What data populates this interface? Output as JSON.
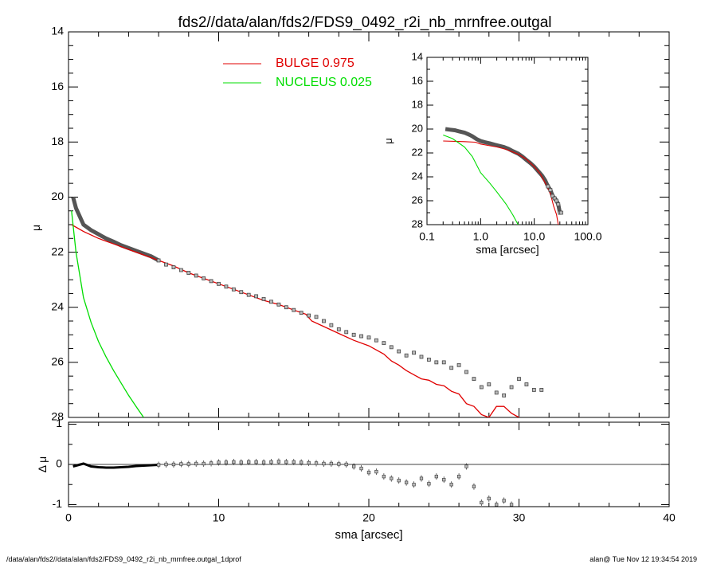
{
  "title": "fds2//data/alan/fds2/FDS9_0492_r2i_nb_mrnfree.outgal",
  "footer": {
    "left": "/data/alan/fds2//data/alan/fds2/FDS9_0492_r2i_nb_mrnfree.outgal_1dprof",
    "right": "alan@  Tue Nov 12 19:34:54 2019"
  },
  "colors": {
    "bulge": "#e00000",
    "nucleus": "#00dd00",
    "data": "#555555",
    "axis": "#000000"
  },
  "chart_data": [
    {
      "type": "line",
      "name": "main-profile",
      "xlabel": "",
      "ylabel": "μ",
      "xlim": [
        0,
        40
      ],
      "ylim": [
        28,
        14
      ],
      "y_ticks": [
        "14",
        "16",
        "18",
        "20",
        "22",
        "24",
        "26",
        "28"
      ],
      "legend": [
        {
          "label": "BULGE  0.975",
          "color": "#e00000"
        },
        {
          "label": "NUCLEUS  0.025",
          "color": "#00dd00"
        }
      ],
      "legend_position": "top-center",
      "series": [
        {
          "name": "BULGE  0.975",
          "x": [
            0.2,
            1,
            2,
            3,
            4,
            5,
            6,
            7,
            8,
            9,
            10,
            11,
            12,
            13,
            14,
            15,
            15.8,
            16.2,
            17,
            18,
            19,
            20,
            21,
            21.5,
            22,
            22.5,
            23,
            23.5,
            24,
            24.5,
            25,
            25.5,
            26,
            26.5,
            27,
            27.5,
            28,
            28.5,
            29,
            29.5,
            30
          ],
          "y": [
            21.0,
            21.25,
            21.5,
            21.7,
            21.9,
            22.1,
            22.3,
            22.5,
            22.75,
            22.95,
            23.15,
            23.35,
            23.55,
            23.75,
            23.9,
            24.1,
            24.25,
            24.5,
            24.7,
            24.95,
            25.2,
            25.4,
            25.7,
            25.95,
            26.1,
            26.3,
            26.45,
            26.6,
            26.65,
            26.8,
            26.85,
            27.05,
            27.15,
            27.5,
            27.6,
            27.9,
            28.0,
            27.6,
            27.6,
            27.85,
            28.0
          ]
        },
        {
          "name": "NUCLEUS  0.025",
          "x": [
            0.2,
            0.5,
            1,
            1.5,
            2,
            2.5,
            3,
            3.5,
            4,
            4.5,
            5
          ],
          "y": [
            20.5,
            22.0,
            23.65,
            24.55,
            25.25,
            25.8,
            26.3,
            26.75,
            27.2,
            27.6,
            28.0
          ]
        },
        {
          "name": "data",
          "x": [
            0.3,
            0.5,
            1,
            1.5,
            2,
            2.5,
            3,
            3.5,
            4,
            4.5,
            5,
            5.5,
            6,
            6.5,
            7,
            7.5,
            8,
            8.5,
            9,
            9.5,
            10,
            10.5,
            11,
            11.5,
            12,
            12.5,
            13,
            13.5,
            14,
            14.5,
            15,
            15.5,
            16,
            16.5,
            17,
            17.5,
            18,
            18.5,
            19,
            19.5,
            20,
            20.5,
            21,
            21.5,
            22,
            22.5,
            23,
            23.5,
            24,
            24.5,
            25,
            25.5,
            26,
            26.5,
            27,
            27.5,
            28,
            28.5,
            29,
            29.5,
            30,
            30.5,
            31,
            31.5
          ],
          "y": [
            20.0,
            20.4,
            21.0,
            21.2,
            21.35,
            21.5,
            21.62,
            21.75,
            21.85,
            21.95,
            22.05,
            22.15,
            22.3,
            22.45,
            22.55,
            22.65,
            22.75,
            22.85,
            22.95,
            23.05,
            23.15,
            23.25,
            23.35,
            23.45,
            23.55,
            23.6,
            23.7,
            23.8,
            23.9,
            24.0,
            24.1,
            24.2,
            24.3,
            24.35,
            24.5,
            24.65,
            24.8,
            24.9,
            25.0,
            25.05,
            25.1,
            25.2,
            25.3,
            25.45,
            25.6,
            25.75,
            25.65,
            25.8,
            25.9,
            26.0,
            26.0,
            26.2,
            26.1,
            26.35,
            26.6,
            26.9,
            26.8,
            27.1,
            27.2,
            26.9,
            26.6,
            26.8,
            27.0,
            27.0
          ]
        }
      ]
    },
    {
      "type": "scatter",
      "name": "residuals",
      "xlabel": "sma [arcsec]",
      "ylabel": "Δ μ",
      "xlim": [
        0,
        40
      ],
      "ylim": [
        -1.05,
        1.05
      ],
      "x_ticks": [
        "0",
        "10",
        "20",
        "30",
        "40"
      ],
      "y_ticks": [
        "1",
        "0",
        "-1"
      ],
      "series": [
        {
          "name": "residual",
          "x": [
            0.3,
            0.6,
            1,
            1.5,
            2,
            2.5,
            3,
            3.5,
            4,
            4.5,
            5,
            5.5,
            6,
            6.5,
            7,
            7.5,
            8,
            8.5,
            9,
            9.5,
            10,
            10.5,
            11,
            11.5,
            12,
            12.5,
            13,
            13.5,
            14,
            14.5,
            15,
            15.5,
            16,
            16.5,
            17,
            17.5,
            18,
            18.5,
            19,
            19.5,
            20,
            20.5,
            21,
            21.5,
            22,
            22.5,
            23,
            23.5,
            24,
            24.5,
            25,
            25.5,
            26,
            26.5,
            27,
            27.5,
            28,
            28.5,
            29,
            29.5
          ],
          "y": [
            -0.05,
            -0.02,
            0.02,
            -0.05,
            -0.07,
            -0.08,
            -0.08,
            -0.07,
            -0.06,
            -0.04,
            -0.03,
            -0.02,
            -0.01,
            0.0,
            0.0,
            0.01,
            0.01,
            0.02,
            0.02,
            0.03,
            0.05,
            0.05,
            0.06,
            0.05,
            0.06,
            0.06,
            0.05,
            0.06,
            0.07,
            0.06,
            0.06,
            0.05,
            0.04,
            0.03,
            0.02,
            0.02,
            0.01,
            0.0,
            -0.05,
            -0.1,
            -0.2,
            -0.18,
            -0.3,
            -0.35,
            -0.4,
            -0.45,
            -0.5,
            -0.35,
            -0.48,
            -0.3,
            -0.38,
            -0.5,
            -0.3,
            -0.05,
            -0.55,
            -0.95,
            -0.85,
            -1.0,
            -0.9,
            -1.0
          ]
        }
      ]
    },
    {
      "type": "line",
      "name": "inset-log-profile",
      "xlabel": "sma [arcsec]",
      "ylabel": "μ",
      "xscale": "log",
      "xlim": [
        0.1,
        100.0
      ],
      "ylim": [
        28,
        14
      ],
      "x_ticks": [
        "0.1",
        "1.0",
        "10.0",
        "100.0"
      ],
      "y_ticks": [
        "14",
        "16",
        "18",
        "20",
        "22",
        "24",
        "26",
        "28"
      ],
      "series": [
        {
          "name": "BULGE  0.975",
          "x": [
            0.2,
            0.5,
            0.8,
            1.0,
            1.5,
            2.0,
            3.0,
            5.0,
            7.0,
            10.0,
            13.0,
            16.0,
            20.0,
            23.0,
            26.0,
            28.0
          ],
          "y": [
            21.0,
            21.05,
            21.1,
            21.25,
            21.4,
            21.5,
            21.7,
            22.1,
            22.5,
            23.15,
            23.75,
            24.5,
            25.4,
            26.45,
            27.15,
            28.0
          ]
        },
        {
          "name": "NUCLEUS  0.025",
          "x": [
            0.2,
            0.3,
            0.5,
            0.7,
            1.0,
            1.5,
            2.0,
            3.0,
            4.0,
            5.0
          ],
          "y": [
            20.5,
            20.8,
            21.5,
            22.3,
            23.65,
            24.55,
            25.25,
            26.3,
            27.2,
            28.0
          ]
        },
        {
          "name": "data",
          "x": [
            0.22,
            0.27,
            0.33,
            0.4,
            0.5,
            0.6,
            0.7,
            0.85,
            1.0,
            1.2,
            1.5,
            1.8,
            2.2,
            2.7,
            3.3,
            4.0,
            5.0,
            6.0,
            7.0,
            8.5,
            10.0,
            12.0,
            14.0,
            16.0,
            18.0,
            20.0,
            22.0,
            24.0,
            26.0,
            28.0,
            30.0,
            32.0
          ],
          "y": [
            20.0,
            20.05,
            20.1,
            20.2,
            20.3,
            20.45,
            20.6,
            20.85,
            21.0,
            21.1,
            21.2,
            21.3,
            21.4,
            21.5,
            21.65,
            21.85,
            22.05,
            22.3,
            22.55,
            22.85,
            23.15,
            23.55,
            23.9,
            24.3,
            24.8,
            25.1,
            25.6,
            25.8,
            26.0,
            26.3,
            27.0,
            27.0
          ]
        }
      ]
    }
  ]
}
